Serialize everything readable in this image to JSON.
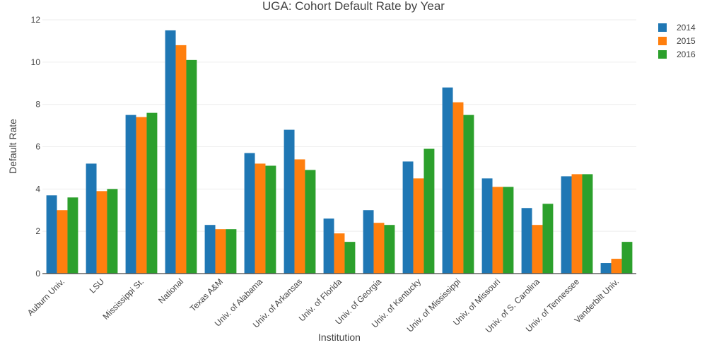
{
  "chart_data": {
    "type": "bar",
    "title": "UGA: Cohort Default Rate by Year",
    "xlabel": "Institution",
    "ylabel": "Default Rate",
    "ylim": [
      0,
      12
    ],
    "yticks": [
      0,
      2,
      4,
      6,
      8,
      10,
      12
    ],
    "grid": true,
    "legend_position": "top-right",
    "categories": [
      "Auburn Univ.",
      "LSU",
      "Mississippi St.",
      "National",
      "Texas A&M",
      "Univ. of Alabama",
      "Univ. of Arkansas",
      "Univ. of Florida",
      "Univ. of Georgia",
      "Univ. of Kentucky",
      "Univ. of Mississippi",
      "Univ. of Missouri",
      "Univ. of S. Carolina",
      "Univ. of Tennessee",
      "Vanderbilt Univ."
    ],
    "series": [
      {
        "name": "2014",
        "color": "#1f77b4",
        "values": [
          3.7,
          5.2,
          7.5,
          11.5,
          2.3,
          5.7,
          6.8,
          2.6,
          3.0,
          5.3,
          8.8,
          4.5,
          3.1,
          4.6,
          0.5
        ]
      },
      {
        "name": "2015",
        "color": "#ff7f0e",
        "values": [
          3.0,
          3.9,
          7.4,
          10.8,
          2.1,
          5.2,
          5.4,
          1.9,
          2.4,
          4.5,
          8.1,
          4.1,
          2.3,
          4.7,
          0.7
        ]
      },
      {
        "name": "2016",
        "color": "#2ca02c",
        "values": [
          3.6,
          4.0,
          7.6,
          10.1,
          2.1,
          5.1,
          4.9,
          1.5,
          2.3,
          5.9,
          7.5,
          4.1,
          3.3,
          4.7,
          1.5
        ]
      }
    ]
  }
}
